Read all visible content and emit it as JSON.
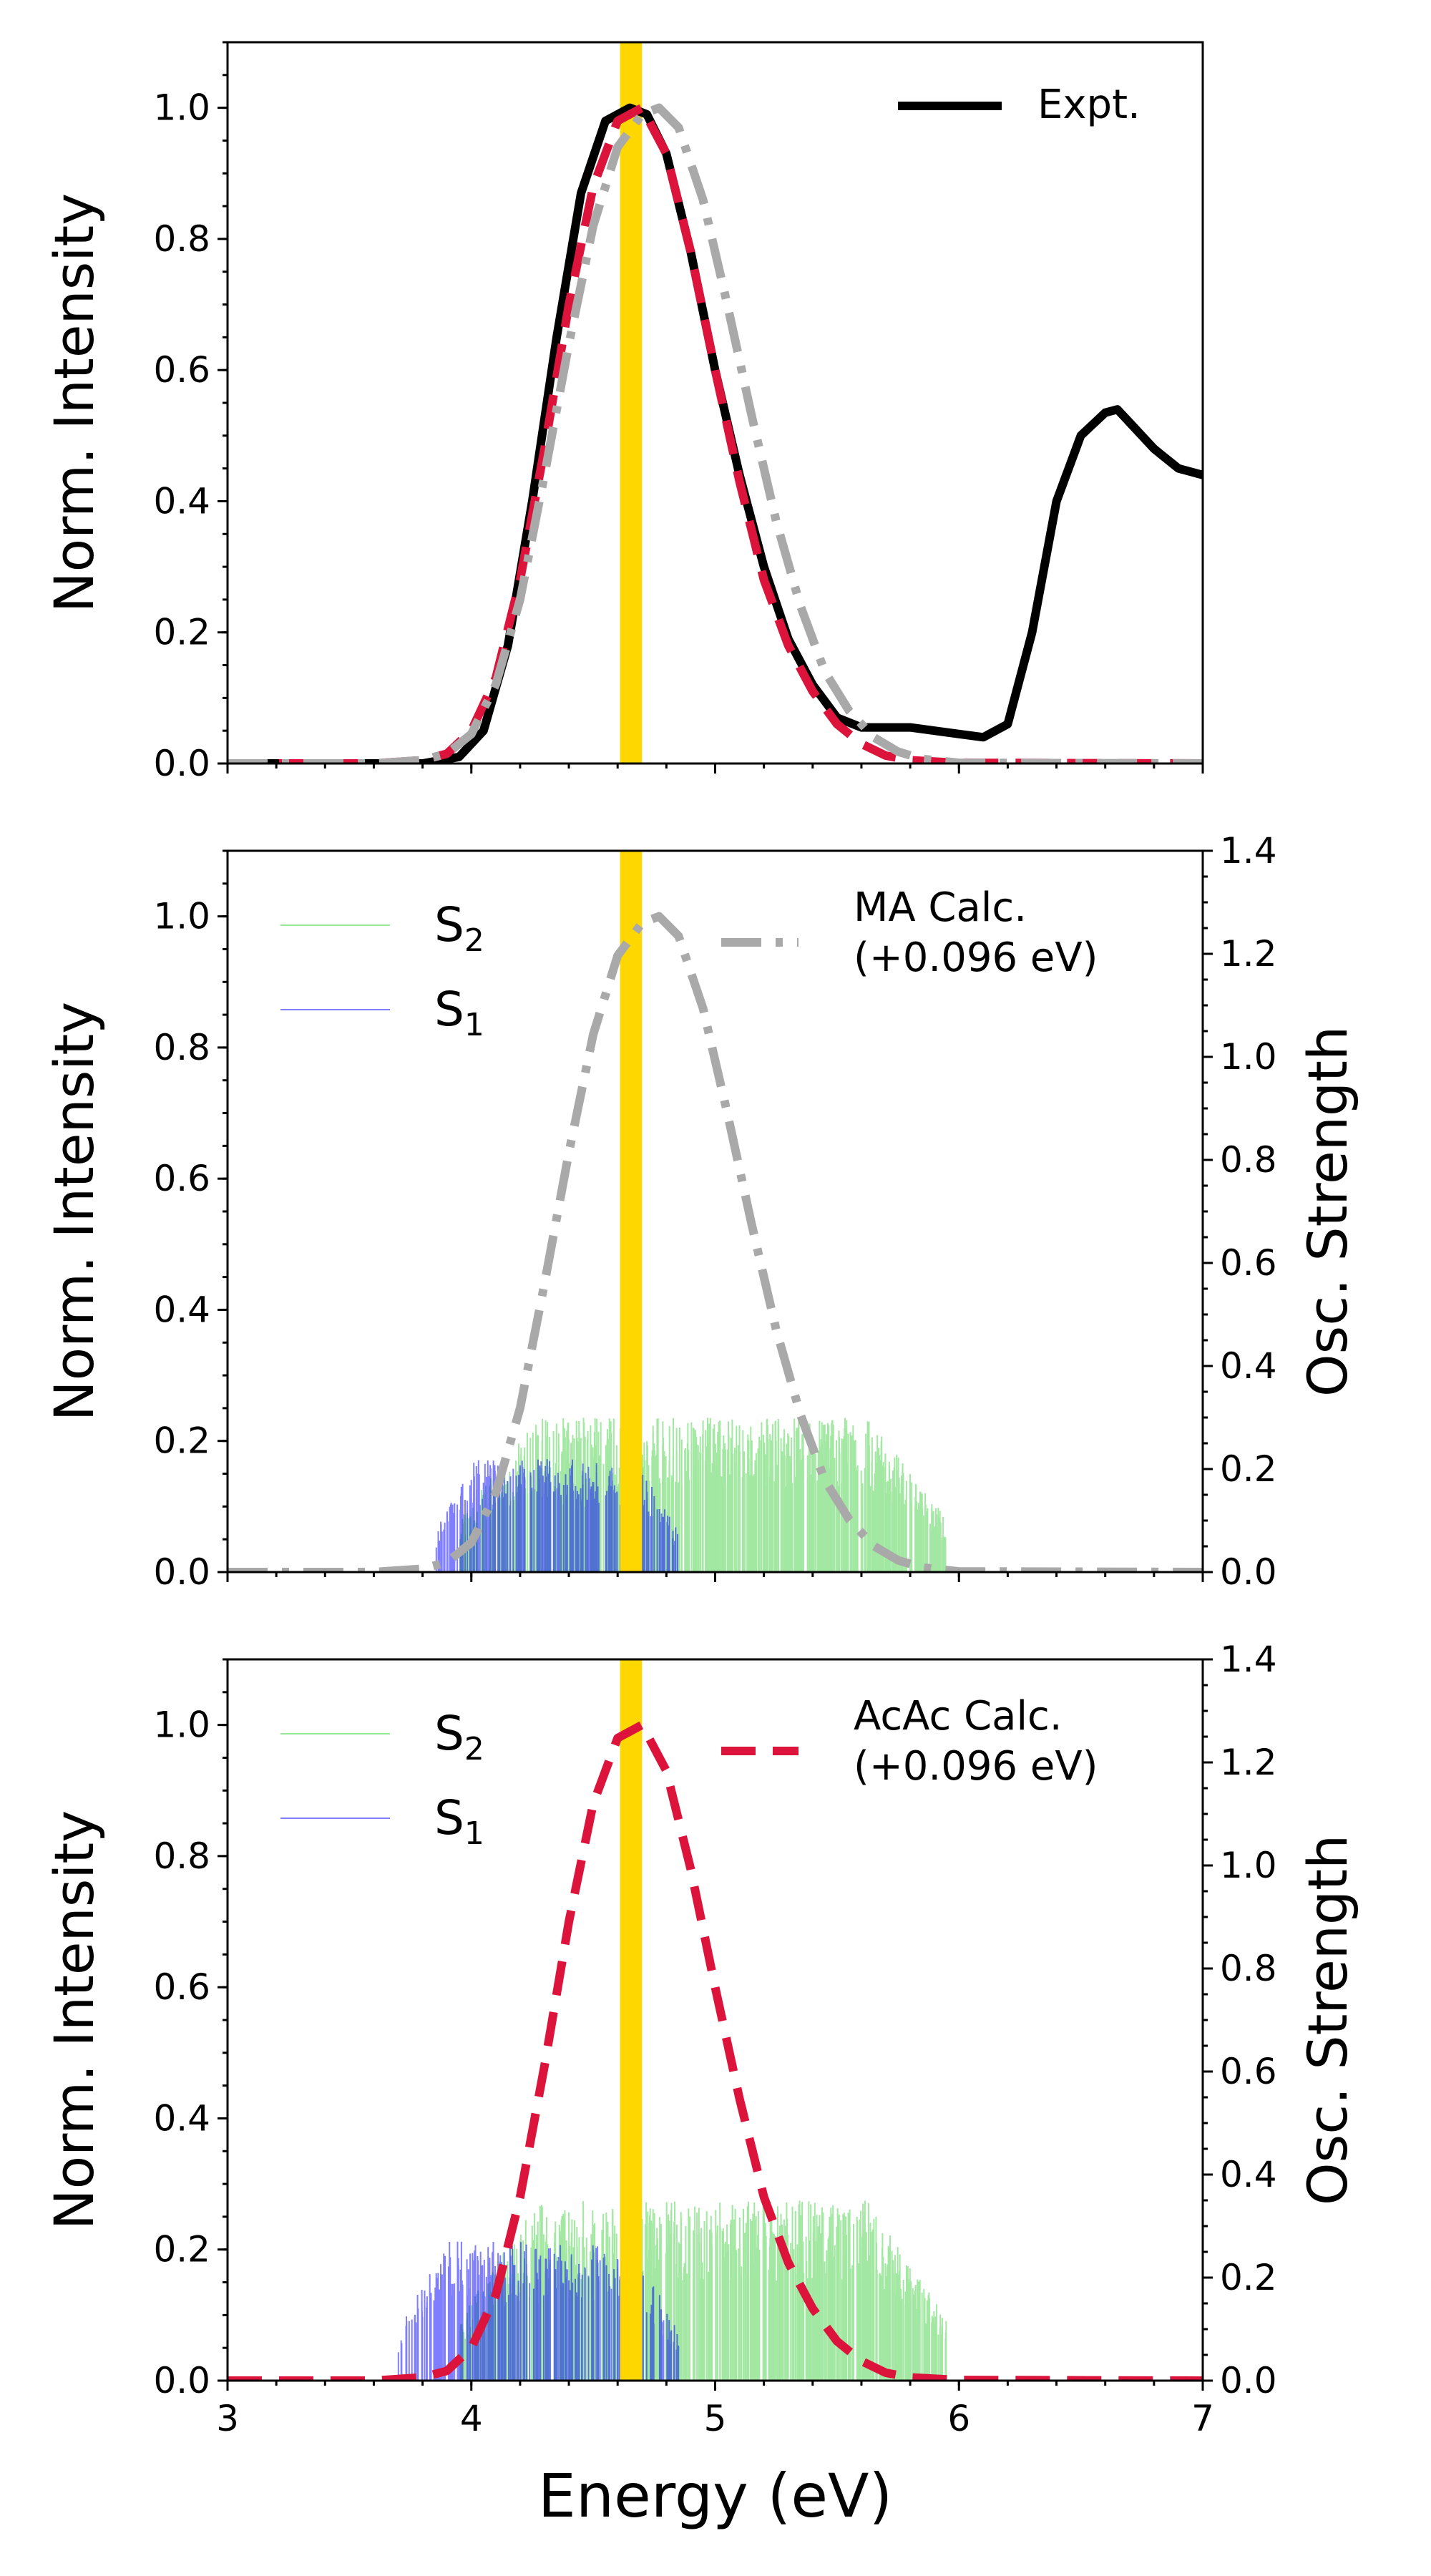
{
  "chart_data": [
    {
      "type": "line",
      "x_label": "",
      "y_label": "Norm. Intensity",
      "xlim": [
        3,
        7
      ],
      "ylim": [
        0,
        1.1
      ],
      "x_ticks": [
        "3",
        "4",
        "5",
        "6",
        "7"
      ],
      "y_ticks": [
        "0.0",
        "0.2",
        "0.4",
        "0.6",
        "0.8",
        "1.0"
      ],
      "highlight_band": {
        "x": [
          4.61,
          4.7
        ],
        "color": "#FFD700"
      },
      "legend": {
        "position": "top-right",
        "entries": [
          "Expt."
        ]
      },
      "series": [
        {
          "name": "Expt.",
          "color": "#000000",
          "style": "solid",
          "x": [
            3.0,
            3.5,
            3.8,
            3.95,
            4.05,
            4.15,
            4.25,
            4.35,
            4.45,
            4.55,
            4.65,
            4.72,
            4.8,
            4.9,
            5.0,
            5.1,
            5.2,
            5.3,
            5.4,
            5.5,
            5.6,
            5.7,
            5.8,
            5.9,
            6.0,
            6.1,
            6.2,
            6.3,
            6.4,
            6.5,
            6.6,
            6.65,
            6.7,
            6.8,
            6.9,
            7.0
          ],
          "values": [
            0.0,
            0.0,
            0.0,
            0.01,
            0.05,
            0.18,
            0.4,
            0.65,
            0.87,
            0.98,
            1.0,
            0.99,
            0.93,
            0.78,
            0.6,
            0.44,
            0.3,
            0.19,
            0.12,
            0.07,
            0.055,
            0.055,
            0.055,
            0.05,
            0.045,
            0.04,
            0.06,
            0.2,
            0.4,
            0.5,
            0.535,
            0.54,
            0.52,
            0.48,
            0.45,
            0.44
          ]
        },
        {
          "name": "",
          "color": "#DC143C",
          "style": "dashed",
          "x": [
            3.0,
            3.6,
            3.8,
            3.9,
            4.0,
            4.1,
            4.2,
            4.3,
            4.4,
            4.5,
            4.6,
            4.7,
            4.8,
            4.9,
            5.0,
            5.1,
            5.2,
            5.3,
            5.4,
            5.5,
            5.6,
            5.7,
            5.8,
            6.0,
            7.0
          ],
          "values": [
            0.0,
            0.0,
            0.005,
            0.015,
            0.05,
            0.13,
            0.28,
            0.48,
            0.7,
            0.88,
            0.98,
            1.0,
            0.93,
            0.78,
            0.6,
            0.43,
            0.28,
            0.18,
            0.11,
            0.06,
            0.03,
            0.012,
            0.005,
            0.001,
            0.0
          ]
        },
        {
          "name": "",
          "color": "#A9A9A9",
          "style": "dashdot",
          "x": [
            3.0,
            3.6,
            3.8,
            3.9,
            4.0,
            4.1,
            4.2,
            4.3,
            4.4,
            4.5,
            4.6,
            4.7,
            4.77,
            4.85,
            4.95,
            5.05,
            5.15,
            5.25,
            5.35,
            5.45,
            5.55,
            5.65,
            5.75,
            5.85,
            6.0,
            7.0
          ],
          "values": [
            0.0,
            0.0,
            0.005,
            0.015,
            0.045,
            0.12,
            0.25,
            0.44,
            0.64,
            0.82,
            0.94,
            0.99,
            1.0,
            0.97,
            0.86,
            0.7,
            0.53,
            0.37,
            0.24,
            0.14,
            0.08,
            0.04,
            0.018,
            0.007,
            0.001,
            0.0
          ]
        }
      ]
    },
    {
      "type": "line",
      "x_label": "",
      "y_label": "Norm. Intensity",
      "y2_label": "Osc. Strength",
      "xlim": [
        3,
        7
      ],
      "ylim": [
        0,
        1.1
      ],
      "y2lim": [
        0,
        1.4
      ],
      "x_ticks": [
        "3",
        "4",
        "5",
        "6",
        "7"
      ],
      "y_ticks": [
        "0.0",
        "0.2",
        "0.4",
        "0.6",
        "0.8",
        "1.0"
      ],
      "y2_ticks": [
        "0.0",
        "0.2",
        "0.4",
        "0.6",
        "0.8",
        "1.0",
        "1.2",
        "1.4"
      ],
      "highlight_band": {
        "x": [
          4.61,
          4.7
        ],
        "color": "#FFD700"
      },
      "legend": {
        "position": "top-left and top-right",
        "entries": [
          "S2",
          "S1",
          "MA Calc. (+0.096 eV)"
        ]
      },
      "stick_legend": [
        {
          "prefix": "S",
          "sub": "2",
          "color": "#32CD32"
        },
        {
          "prefix": "S",
          "sub": "1",
          "color": "#0000FF"
        }
      ],
      "curve_legend": {
        "line1": "MA Calc.",
        "line2": " (+0.096 eV)",
        "color": "#A9A9A9",
        "style": "dashdot"
      },
      "sticks": {
        "S1": {
          "color": "#0000FF",
          "x_range": [
            3.85,
            4.85
          ],
          "osc_strength_range": [
            0.0,
            0.22
          ]
        },
        "S2": {
          "color": "#32CD32",
          "x_range": [
            3.95,
            5.95
          ],
          "osc_strength_range": [
            0.0,
            0.3
          ]
        }
      },
      "series": [
        {
          "name": "MA Calc. (+0.096 eV)",
          "color": "#A9A9A9",
          "style": "dashdot",
          "x": [
            3.0,
            3.6,
            3.8,
            3.9,
            4.0,
            4.1,
            4.2,
            4.3,
            4.4,
            4.5,
            4.6,
            4.7,
            4.77,
            4.85,
            4.95,
            5.05,
            5.15,
            5.25,
            5.35,
            5.45,
            5.55,
            5.65,
            5.75,
            5.85,
            6.0,
            7.0
          ],
          "values": [
            0.0,
            0.0,
            0.005,
            0.015,
            0.045,
            0.12,
            0.25,
            0.44,
            0.64,
            0.82,
            0.94,
            0.99,
            1.0,
            0.97,
            0.86,
            0.7,
            0.53,
            0.37,
            0.24,
            0.14,
            0.08,
            0.04,
            0.018,
            0.007,
            0.001,
            0.0
          ]
        }
      ]
    },
    {
      "type": "line",
      "x_label": "Energy (eV)",
      "y_label": "Norm. Intensity",
      "y2_label": "Osc. Strength",
      "xlim": [
        3,
        7
      ],
      "ylim": [
        0,
        1.1
      ],
      "y2lim": [
        0,
        1.4
      ],
      "x_ticks": [
        "3",
        "4",
        "5",
        "6",
        "7"
      ],
      "y_ticks": [
        "0.0",
        "0.2",
        "0.4",
        "0.6",
        "0.8",
        "1.0"
      ],
      "y2_ticks": [
        "0.0",
        "0.2",
        "0.4",
        "0.6",
        "0.8",
        "1.0",
        "1.2",
        "1.4"
      ],
      "highlight_band": {
        "x": [
          4.61,
          4.7
        ],
        "color": "#FFD700"
      },
      "legend": {
        "position": "top-left and top-right",
        "entries": [
          "S2",
          "S1",
          "AcAc Calc. (+0.096 eV)"
        ]
      },
      "stick_legend": [
        {
          "prefix": "S",
          "sub": "2",
          "color": "#32CD32"
        },
        {
          "prefix": "S",
          "sub": "1",
          "color": "#0000FF"
        }
      ],
      "curve_legend": {
        "line1": "AcAc Calc.",
        "line2": " (+0.096 eV)",
        "color": "#DC143C",
        "style": "dashed"
      },
      "sticks": {
        "S1": {
          "color": "#0000FF",
          "x_range": [
            3.7,
            4.85
          ],
          "osc_strength_range": [
            0.0,
            0.27
          ]
        },
        "S2": {
          "color": "#32CD32",
          "x_range": [
            3.95,
            5.95
          ],
          "osc_strength_range": [
            0.0,
            0.35
          ]
        }
      },
      "series": [
        {
          "name": "AcAc Calc. (+0.096 eV)",
          "color": "#DC143C",
          "style": "dashed",
          "x": [
            3.0,
            3.6,
            3.8,
            3.9,
            4.0,
            4.1,
            4.2,
            4.3,
            4.4,
            4.5,
            4.6,
            4.7,
            4.8,
            4.9,
            5.0,
            5.1,
            5.2,
            5.3,
            5.4,
            5.5,
            5.6,
            5.7,
            5.8,
            6.0,
            7.0
          ],
          "values": [
            0.0,
            0.0,
            0.005,
            0.015,
            0.05,
            0.13,
            0.28,
            0.48,
            0.7,
            0.88,
            0.98,
            1.0,
            0.93,
            0.78,
            0.6,
            0.43,
            0.28,
            0.18,
            0.11,
            0.06,
            0.03,
            0.012,
            0.005,
            0.001,
            0.0
          ]
        }
      ]
    }
  ]
}
